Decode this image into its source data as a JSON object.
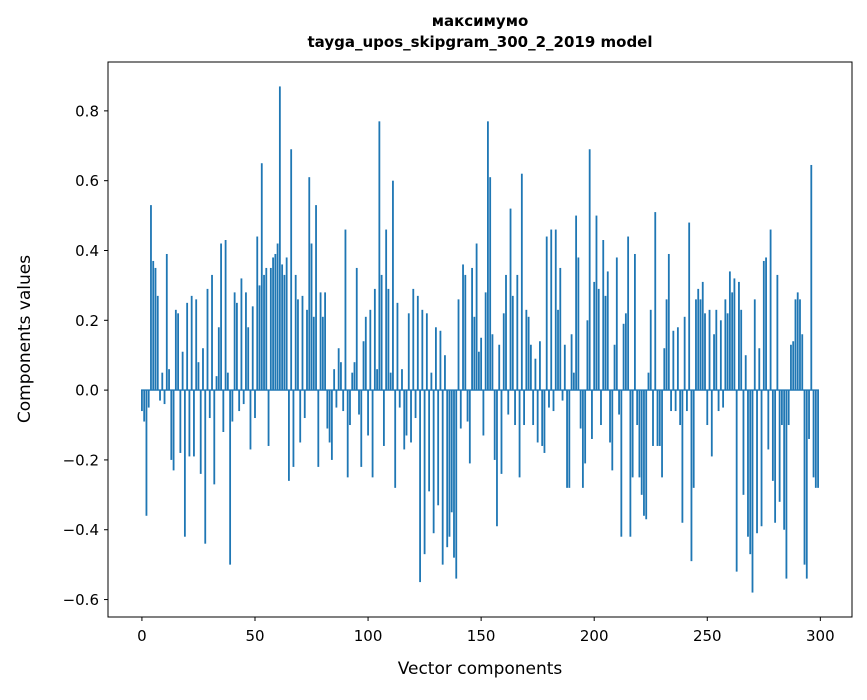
{
  "chart_data": {
    "type": "bar",
    "title": "максимумо",
    "subtitle": "tayga_upos_skipgram_300_2_2019 model",
    "xlabel": "Vector components",
    "ylabel": "Components values",
    "bar_color": "#1f77b4",
    "x_start": 0,
    "n_bars": 300,
    "xlim": [
      -15,
      314
    ],
    "ylim": [
      -0.65,
      0.94
    ],
    "x_ticks": [
      0,
      50,
      100,
      150,
      200,
      250,
      300
    ],
    "x_tick_labels": [
      "0",
      "50",
      "100",
      "150",
      "200",
      "250",
      "300"
    ],
    "y_ticks": [
      0.8,
      0.6,
      0.4,
      0.2,
      0.0,
      -0.2,
      -0.4,
      -0.6
    ],
    "y_tick_labels": [
      "0.8",
      "0.6",
      "0.4",
      "0.2",
      "0.0",
      "−0.2",
      "−0.4",
      "−0.6"
    ],
    "grid": false,
    "legend_position": "none",
    "values": [
      -0.06,
      -0.09,
      -0.36,
      -0.05,
      0.53,
      0.37,
      0.35,
      0.27,
      -0.03,
      0.05,
      -0.04,
      0.39,
      0.06,
      -0.2,
      -0.23,
      0.23,
      0.22,
      -0.18,
      0.11,
      -0.42,
      0.25,
      -0.19,
      0.27,
      -0.19,
      0.26,
      0.08,
      -0.24,
      0.12,
      -0.44,
      0.29,
      -0.08,
      0.33,
      -0.27,
      0.04,
      0.18,
      0.42,
      -0.12,
      0.43,
      0.05,
      -0.5,
      -0.09,
      0.28,
      0.25,
      -0.06,
      0.32,
      -0.04,
      0.28,
      0.18,
      -0.17,
      0.24,
      -0.08,
      0.44,
      0.3,
      0.65,
      0.33,
      0.35,
      -0.16,
      0.35,
      0.38,
      0.39,
      0.42,
      0.87,
      0.36,
      0.33,
      0.38,
      -0.26,
      0.69,
      -0.22,
      0.33,
      0.26,
      -0.15,
      0.27,
      -0.08,
      0.23,
      0.61,
      0.42,
      0.21,
      0.53,
      -0.22,
      0.28,
      0.21,
      0.28,
      -0.11,
      -0.15,
      -0.2,
      0.06,
      -0.05,
      0.12,
      0.08,
      -0.06,
      0.46,
      -0.25,
      -0.1,
      0.05,
      0.08,
      0.35,
      -0.07,
      -0.22,
      0.14,
      0.21,
      -0.13,
      0.23,
      -0.25,
      0.29,
      0.06,
      0.77,
      0.33,
      -0.16,
      0.46,
      0.29,
      0.05,
      0.6,
      -0.28,
      0.25,
      -0.05,
      0.06,
      -0.17,
      -0.13,
      0.22,
      -0.15,
      0.29,
      -0.08,
      0.27,
      -0.55,
      0.23,
      -0.47,
      0.22,
      -0.29,
      0.05,
      -0.41,
      0.18,
      -0.33,
      0.17,
      -0.5,
      0.1,
      -0.45,
      -0.42,
      -0.35,
      -0.48,
      -0.54,
      0.26,
      -0.11,
      0.36,
      0.33,
      -0.09,
      -0.21,
      0.35,
      0.21,
      0.42,
      0.11,
      0.15,
      -0.13,
      0.28,
      0.77,
      0.61,
      0.16,
      -0.2,
      -0.39,
      0.13,
      -0.24,
      0.22,
      0.33,
      -0.07,
      0.52,
      0.27,
      -0.1,
      0.33,
      -0.25,
      0.62,
      -0.1,
      0.23,
      0.21,
      0.13,
      -0.1,
      0.09,
      -0.15,
      0.14,
      -0.16,
      -0.18,
      0.44,
      -0.05,
      0.46,
      -0.06,
      0.46,
      0.23,
      0.35,
      -0.03,
      0.13,
      -0.28,
      -0.28,
      0.16,
      0.05,
      0.5,
      0.38,
      -0.11,
      -0.28,
      -0.21,
      0.2,
      0.69,
      -0.14,
      0.31,
      0.5,
      0.29,
      -0.1,
      0.43,
      0.27,
      0.34,
      -0.15,
      -0.23,
      0.13,
      0.38,
      -0.07,
      -0.42,
      0.19,
      0.22,
      0.44,
      -0.42,
      -0.25,
      0.39,
      -0.1,
      -0.25,
      -0.3,
      -0.36,
      -0.37,
      0.05,
      0.23,
      -0.16,
      0.51,
      -0.16,
      -0.16,
      -0.25,
      0.12,
      0.26,
      0.39,
      -0.06,
      0.17,
      -0.06,
      0.18,
      -0.1,
      -0.38,
      0.21,
      -0.06,
      0.48,
      -0.49,
      -0.28,
      0.26,
      0.29,
      0.26,
      0.31,
      0.22,
      -0.1,
      0.23,
      -0.19,
      0.16,
      0.23,
      -0.06,
      0.2,
      -0.05,
      0.26,
      0.22,
      0.34,
      0.28,
      0.32,
      -0.52,
      0.31,
      0.23,
      -0.3,
      0.1,
      -0.42,
      -0.47,
      -0.58,
      0.26,
      -0.41,
      0.12,
      -0.39,
      0.37,
      0.38,
      -0.17,
      0.46,
      -0.26,
      -0.38,
      0.33,
      -0.32,
      -0.1,
      -0.4,
      -0.54,
      -0.1,
      0.13,
      0.14,
      0.26,
      0.28,
      0.26,
      0.16,
      -0.5,
      -0.54,
      -0.14,
      0.645,
      -0.25,
      -0.28,
      -0.28
    ]
  }
}
